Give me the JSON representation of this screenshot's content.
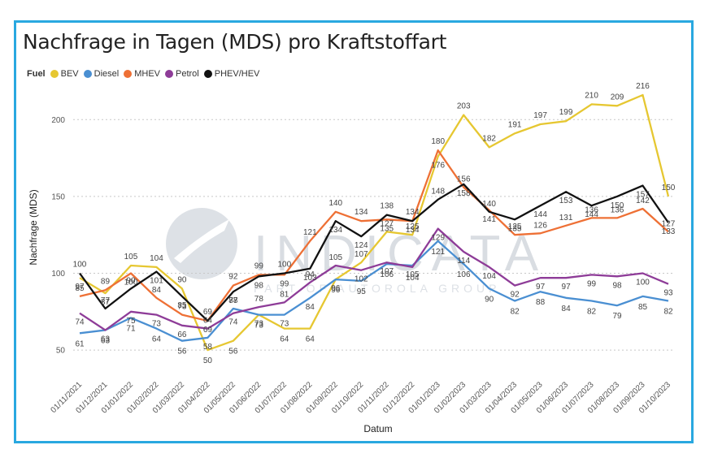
{
  "chart_data": {
    "type": "line",
    "title": "Nachfrage in Tagen (MDS) pro Kraftstoffart",
    "xlabel": "Datum",
    "ylabel": "Nachfrage (MDS)",
    "ylim": [
      40,
      225
    ],
    "yticks": [
      50,
      100,
      150,
      200
    ],
    "grid": true,
    "legend_title": "Fuel",
    "legend_position": "top-left",
    "watermark": "INDICATA",
    "watermark_sub": "PART OF AUTOROLA GROUP",
    "categories": [
      "01/11/2021",
      "01/12/2021",
      "01/01/2022",
      "01/02/2022",
      "01/03/2022",
      "01/04/2022",
      "01/05/2022",
      "01/06/2022",
      "01/07/2022",
      "01/08/2022",
      "01/09/2022",
      "01/10/2022",
      "01/11/2022",
      "01/12/2022",
      "01/01/2023",
      "01/02/2023",
      "01/03/2023",
      "01/04/2023",
      "01/05/2023",
      "01/06/2023",
      "01/07/2023",
      "01/08/2023",
      "01/09/2023",
      "01/10/2023"
    ],
    "series": [
      {
        "name": "BEV",
        "color": "#e6c731",
        "values": [
          97,
          87,
          105,
          104,
          90,
          50,
          56,
          73,
          64,
          64,
          96,
          107,
          127,
          125,
          176,
          203,
          182,
          191,
          197,
          199,
          210,
          209,
          216,
          150
        ]
      },
      {
        "name": "Diesel",
        "color": "#4a8fd2",
        "values": [
          61,
          63,
          71,
          64,
          56,
          58,
          77,
          73,
          73,
          84,
          96,
          95,
          106,
          105,
          121,
          106,
          90,
          82,
          88,
          84,
          82,
          79,
          85,
          82
        ]
      },
      {
        "name": "MHEV",
        "color": "#ee7035",
        "values": [
          85,
          89,
          100,
          84,
          73,
          69,
          92,
          99,
          99,
          121,
          140,
          134,
          135,
          134,
          180,
          156,
          141,
          125,
          126,
          131,
          136,
          136,
          142,
          127
        ]
      },
      {
        "name": "Petrol",
        "color": "#8e3c98",
        "values": [
          74,
          63,
          75,
          73,
          66,
          64,
          74,
          78,
          81,
          94,
          105,
          102,
          107,
          104,
          129,
          114,
          104,
          92,
          97,
          97,
          99,
          98,
          100,
          93
        ]
      },
      {
        "name": "PHEV/HEV",
        "color": "#111111",
        "values": [
          100,
          77,
          90,
          101,
          85,
          69,
          88,
          98,
          100,
          103,
          134,
          124,
          138,
          134,
          148,
          158,
          140,
          135,
          144,
          153,
          144,
          150,
          157,
          133
        ]
      }
    ],
    "data_labels": [
      [
        "97",
        "87",
        "105",
        "104",
        "90",
        "50",
        "56",
        "73",
        "64",
        "64",
        "96",
        "107",
        "127",
        "125",
        "176",
        "203",
        "182",
        "191",
        "197",
        "199",
        "210",
        "209",
        "216",
        "150"
      ],
      [
        "61",
        "63",
        "71",
        "64",
        "56",
        "58",
        "77",
        "73",
        "73",
        "84",
        "96",
        "95",
        "106",
        "105",
        "121",
        "106",
        "90",
        "82",
        "88",
        "84",
        "82",
        "79",
        "85",
        "82"
      ],
      [
        "85",
        "89",
        "100",
        "84",
        "73",
        "69",
        "92",
        "99",
        "99",
        "121",
        "140",
        "134",
        "135",
        "134",
        "180",
        "156",
        "141",
        "125",
        "126",
        "131",
        "136",
        "136",
        "142",
        "127"
      ],
      [
        "74",
        "63",
        "75",
        "73",
        "66",
        "64",
        "74",
        "78",
        "81",
        "94",
        "105",
        "102",
        "107",
        "104",
        "129",
        "114",
        "104",
        "92",
        "97",
        "97",
        "99",
        "98",
        "100",
        "93"
      ],
      [
        "100",
        "77",
        "90",
        "101",
        "85",
        "69",
        "88",
        "98",
        "100",
        "103",
        "134",
        "124",
        "138",
        "134",
        "148",
        "158",
        "140",
        "135",
        "144",
        "153",
        "144",
        "150",
        "157",
        "133"
      ]
    ]
  }
}
